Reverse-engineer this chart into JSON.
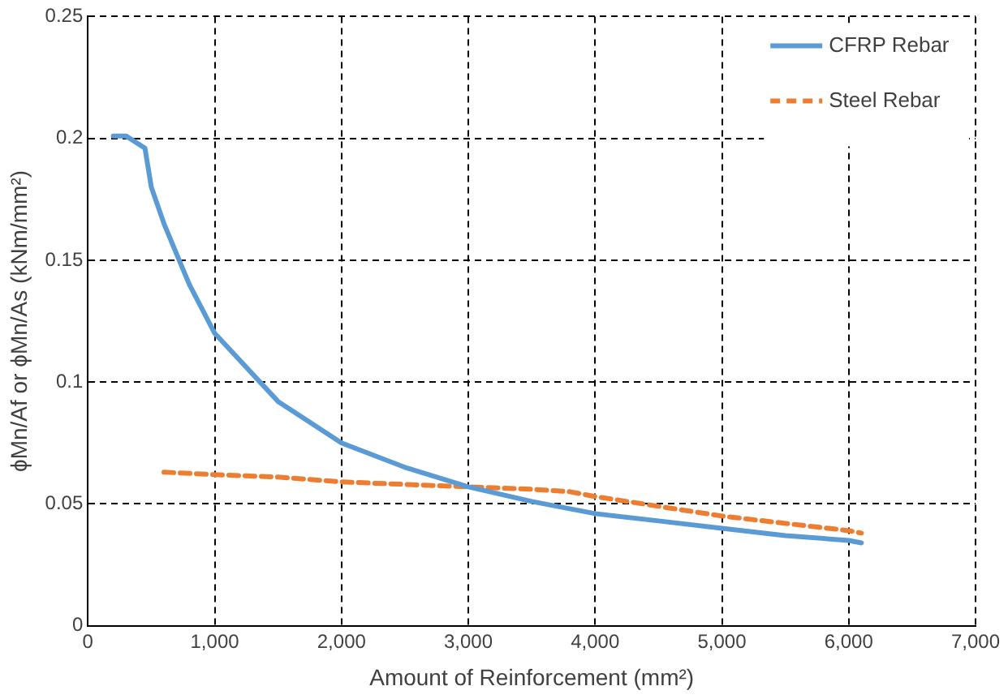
{
  "chart_data": {
    "type": "line",
    "xlabel": "Amount of Reinforcement (mm²)",
    "ylabel": "ϕMn/Af or ϕMn/As (kNm/mm²)",
    "xlim": [
      0,
      7000
    ],
    "xticks": [
      0,
      {
        "value": 1000,
        "label": "1,000"
      },
      {
        "value": 2000,
        "label": "2,000"
      },
      {
        "value": 3000,
        "label": "3,000"
      },
      {
        "value": 4000,
        "label": "4,000"
      },
      {
        "value": 5000,
        "label": "5,000"
      },
      {
        "value": 6000,
        "label": "6,000"
      },
      {
        "value": 7000,
        "label": "7,000"
      }
    ],
    "ylim": [
      0,
      0.25
    ],
    "yticks": [
      0,
      0.05,
      0.1,
      0.15,
      0.2,
      0.25
    ],
    "grid": true,
    "legend": "top right",
    "marker": "none",
    "series": [
      {
        "name": "CFRP Rebar",
        "color": "#5b9bd5",
        "line_style": "solid",
        "x": [
          200,
          300,
          450,
          500,
          600,
          800,
          1000,
          1500,
          2000,
          2500,
          3000,
          3500,
          4000,
          4500,
          5000,
          5500,
          6000,
          6100
        ],
        "values": [
          0.201,
          0.201,
          0.196,
          0.18,
          0.165,
          0.14,
          0.12,
          0.092,
          0.075,
          0.065,
          0.057,
          0.051,
          0.046,
          0.043,
          0.04,
          0.037,
          0.035,
          0.034
        ]
      },
      {
        "name": "Steel Rebar",
        "color": "#ed7d31",
        "line_style": "dashed",
        "x": [
          600,
          1000,
          1500,
          2000,
          2500,
          3000,
          3500,
          3800,
          4000,
          4500,
          5000,
          5500,
          6000,
          6100
        ],
        "values": [
          0.063,
          0.062,
          0.061,
          0.059,
          0.058,
          0.057,
          0.056,
          0.055,
          0.053,
          0.049,
          0.045,
          0.042,
          0.039,
          0.038
        ]
      }
    ]
  }
}
